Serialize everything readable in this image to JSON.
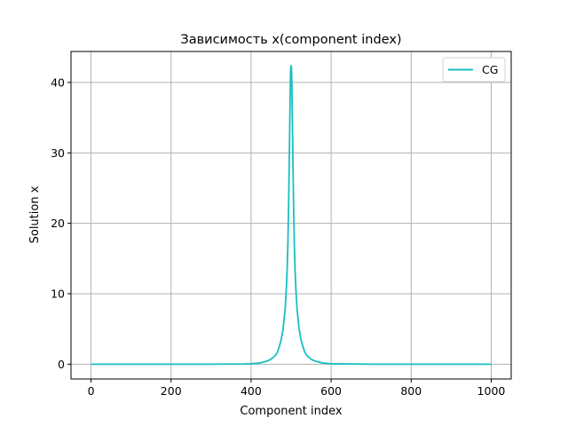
{
  "chart_data": {
    "type": "line",
    "title": "Зависимость x(component index)",
    "xlabel": "Component index",
    "ylabel": "Solution x",
    "xlim": [
      -50,
      1050
    ],
    "ylim": [
      -2.1,
      44.4
    ],
    "xticks": [
      0,
      200,
      400,
      600,
      800,
      1000
    ],
    "yticks": [
      0,
      10,
      20,
      30,
      40
    ],
    "grid": true,
    "legend_position": "top-right",
    "series": [
      {
        "name": "CG",
        "color": "#17bfc4",
        "x": [
          0,
          100,
          200,
          300,
          380,
          400,
          420,
          440,
          450,
          460,
          465,
          470,
          475,
          480,
          485,
          488,
          490,
          492,
          494,
          496,
          498,
          499,
          500,
          501,
          502,
          504,
          506,
          508,
          510,
          512,
          515,
          520,
          525,
          530,
          535,
          540,
          550,
          560,
          580,
          600,
          700,
          800,
          900,
          1000
        ],
        "y": [
          0,
          0,
          0,
          0,
          0.02,
          0.06,
          0.16,
          0.43,
          0.71,
          1.2,
          1.6,
          2.4,
          3.4,
          5.0,
          7.8,
          10.6,
          13.3,
          17.2,
          23.3,
          31.3,
          39.6,
          42.0,
          42.4,
          42.0,
          39.6,
          31.3,
          23.3,
          17.2,
          13.3,
          10.6,
          7.8,
          5.0,
          3.4,
          2.4,
          1.6,
          1.2,
          0.71,
          0.43,
          0.16,
          0.06,
          0,
          0,
          0,
          0
        ]
      }
    ]
  }
}
